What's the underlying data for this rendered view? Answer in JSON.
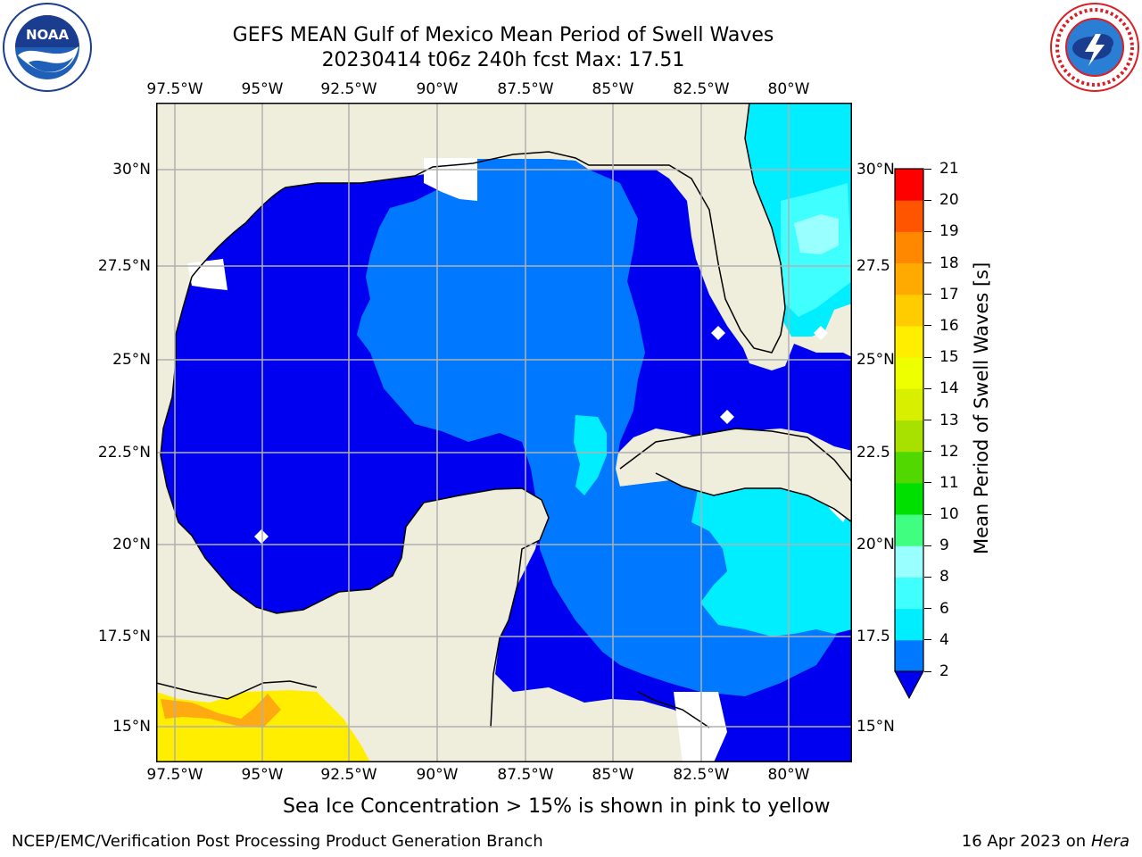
{
  "header": {
    "title_line1": "GEFS MEAN Gulf of Mexico Mean Period of Swell Waves",
    "title_line2": "20230414 t06z 240h fcst   Max: 17.51"
  },
  "logos": {
    "noaa_text": "NOAA",
    "noaa_ring_text": "NATIONAL OCEANIC AND ATMOSPHERIC ADMINISTRATION · U.S. DEPARTMENT OF COMMERCE",
    "nws_ring_text": "NATIONAL WEATHER SERVICE"
  },
  "map": {
    "lon_ticks_top": [
      "97.5°W",
      "95°W",
      "92.5°W",
      "90°W",
      "87.5°W",
      "85°W",
      "82.5°W",
      "80°W"
    ],
    "lon_ticks_bottom": [
      "97.5°W",
      "95°W",
      "92.5°W",
      "90°W",
      "87.5°W",
      "85°W",
      "82.5°W",
      "80°W"
    ],
    "lat_ticks_left": [
      "30°N",
      "27.5°N",
      "25°N",
      "22.5°N",
      "20°N",
      "17.5°N",
      "15°N"
    ],
    "lat_ticks_right": [
      "30°N",
      "27.5",
      "25°N",
      "22.5",
      "20°N",
      "17.5",
      "15°N"
    ],
    "colors": {
      "land": "#efeddc",
      "ocean_lowest": "#0000f0",
      "band_2_4": "#0078ff",
      "band_4_6": "#00eeff",
      "band_6_8": "#40ffff",
      "band_8_9": "#99ffff",
      "ice_yellow": "#ffee00",
      "ice_orange": "#ffaa10",
      "grid": "#b0b0b0"
    }
  },
  "colorbar": {
    "label": "Mean Period of Swell Waves [s]",
    "ticks": [
      "2",
      "4",
      "6",
      "8",
      "9",
      "10",
      "11",
      "12",
      "13",
      "14",
      "15",
      "16",
      "17",
      "18",
      "19",
      "20",
      "21"
    ],
    "colors": [
      "#0078ff",
      "#00eeff",
      "#40ffff",
      "#99ffff",
      "#40ff80",
      "#00e000",
      "#50d800",
      "#a8e000",
      "#d8f000",
      "#eeff00",
      "#ffee00",
      "#ffcc00",
      "#ffaa00",
      "#ff8800",
      "#ff5500",
      "#ff0000"
    ],
    "extend_color": "#0000f0"
  },
  "caption": "Sea Ice Concentration > 15% is shown in pink to yellow",
  "footer": {
    "left": "NCEP/EMC/Verification Post Processing Product Generation Branch",
    "right_prefix": "16 Apr 2023 on ",
    "right_host": "Hera"
  }
}
